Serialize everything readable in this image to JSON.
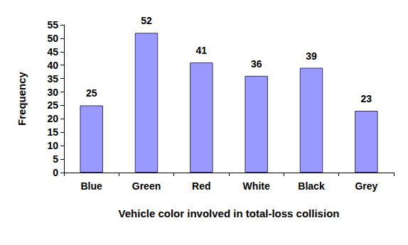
{
  "chart_data": {
    "type": "bar",
    "categories": [
      "Blue",
      "Green",
      "Red",
      "White",
      "Black",
      "Grey"
    ],
    "values": [
      25,
      52,
      41,
      36,
      39,
      23
    ],
    "color": "#9999ff",
    "xlabel": "Vehicle color involved in total-loss collision",
    "ylabel": "Frequency",
    "ylim": [
      0,
      55
    ],
    "yticks": [
      0,
      5,
      10,
      15,
      20,
      25,
      30,
      35,
      40,
      45,
      50,
      55
    ],
    "grid": false,
    "data_labels": true
  }
}
